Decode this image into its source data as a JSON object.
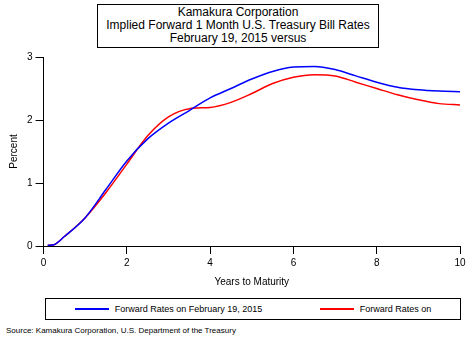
{
  "chart_data": {
    "type": "line",
    "title": [
      "Kamakura Corporation",
      "Implied Forward 1 Month U.S. Treasury Bill Rates",
      "February 19, 2015 versus"
    ],
    "x_label": "Years to Maturity",
    "y_label": "Percent",
    "source": "Source: Kamakura Corporation, U.S. Department of the Treasury",
    "x": [
      0.1,
      0.25,
      0.5,
      1,
      1.5,
      2,
      2.5,
      3,
      3.5,
      4,
      4.5,
      5,
      5.5,
      6,
      6.5,
      7,
      7.5,
      8,
      8.5,
      9,
      9.5,
      10
    ],
    "series": [
      {
        "name": "Forward Rates on February 19, 2015",
        "color": "#0000ff",
        "values": [
          0.01,
          0.02,
          0.15,
          0.45,
          0.9,
          1.35,
          1.7,
          1.95,
          2.15,
          2.35,
          2.5,
          2.65,
          2.77,
          2.84,
          2.85,
          2.8,
          2.7,
          2.6,
          2.52,
          2.48,
          2.46,
          2.45
        ]
      },
      {
        "name": "Forward Rates on",
        "color": "#ff0000",
        "values": [
          0.01,
          0.02,
          0.15,
          0.45,
          0.85,
          1.3,
          1.75,
          2.05,
          2.18,
          2.2,
          2.28,
          2.42,
          2.58,
          2.68,
          2.72,
          2.7,
          2.6,
          2.5,
          2.4,
          2.32,
          2.26,
          2.24
        ]
      }
    ],
    "xlim": [
      0,
      10
    ],
    "xticks": [
      0,
      2,
      4,
      6,
      8,
      10
    ],
    "ylim": [
      0,
      3
    ],
    "yticks": [
      0,
      1,
      2,
      3
    ],
    "grid": false,
    "legend": "bottom"
  }
}
